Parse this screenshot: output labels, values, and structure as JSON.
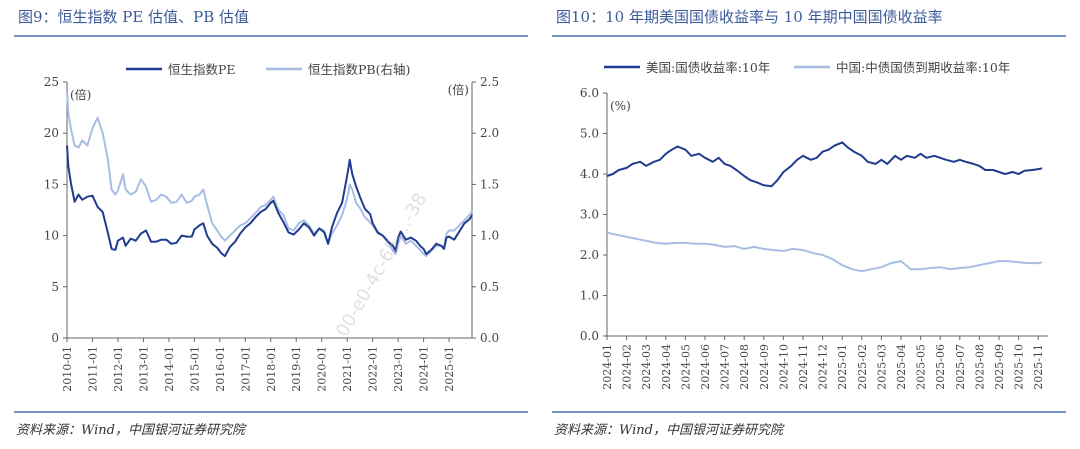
{
  "charts": [
    {
      "title": "图9：恒生指数 PE 估值、PB 估值",
      "source": "资料来源：Wind，中国银河证券研究院",
      "watermark": "00-e0-4c-65-...-38"
    },
    {
      "title": "图10：10 年期美国国债收益率与 10 年期中国国债收益率",
      "source": "资料来源：Wind，中国银河证券研究院"
    }
  ],
  "colors": {
    "dark": "#1f3c8f",
    "light": "#a9bde4",
    "accent": "#3c5a9a"
  },
  "chart_data": [
    {
      "type": "line",
      "title": "",
      "y_unit_left": "(倍)",
      "y_unit_right": "(倍)",
      "ylim": [
        0,
        25
      ],
      "yticks": [
        "0",
        "5",
        "10",
        "15",
        "20",
        "25"
      ],
      "y2lim": [
        0.0,
        2.5
      ],
      "y2ticks": [
        "0.0",
        "0.5",
        "1.0",
        "1.5",
        "2.0",
        "2.5"
      ],
      "xticks": [
        "2010-01",
        "2011-01",
        "2012-01",
        "2013-01",
        "2014-01",
        "2015-01",
        "2016-01",
        "2017-01",
        "2018-01",
        "2019-01",
        "2020-01",
        "2021-01",
        "2022-01",
        "2023-01",
        "2024-01",
        "2025-01"
      ],
      "xlim": [
        2010.0,
        2025.9
      ],
      "legend_position": "top",
      "series": [
        {
          "name": "恒生指数PE",
          "axis": "left",
          "x": [
            2010.0,
            2010.05,
            2010.15,
            2010.3,
            2010.45,
            2010.6,
            2010.8,
            2011.0,
            2011.2,
            2011.4,
            2011.6,
            2011.75,
            2011.9,
            2012.0,
            2012.2,
            2012.3,
            2012.5,
            2012.7,
            2012.9,
            2013.1,
            2013.3,
            2013.5,
            2013.7,
            2013.9,
            2014.1,
            2014.3,
            2014.5,
            2014.7,
            2014.9,
            2015.0,
            2015.2,
            2015.35,
            2015.5,
            2015.7,
            2015.9,
            2016.05,
            2016.2,
            2016.4,
            2016.6,
            2016.8,
            2017.0,
            2017.2,
            2017.4,
            2017.6,
            2017.8,
            2018.0,
            2018.1,
            2018.3,
            2018.5,
            2018.7,
            2018.9,
            2019.1,
            2019.3,
            2019.5,
            2019.7,
            2019.9,
            2020.1,
            2020.25,
            2020.4,
            2020.6,
            2020.8,
            2020.95,
            2021.05,
            2021.1,
            2021.2,
            2021.35,
            2021.5,
            2021.7,
            2021.9,
            2022.0,
            2022.2,
            2022.4,
            2022.6,
            2022.8,
            2022.9,
            2023.0,
            2023.1,
            2023.3,
            2023.5,
            2023.7,
            2023.9,
            2024.0,
            2024.1,
            2024.3,
            2024.5,
            2024.7,
            2024.8,
            2024.9,
            2025.0,
            2025.2,
            2025.4,
            2025.6,
            2025.8,
            2025.9
          ],
          "values": [
            18.8,
            16.8,
            15.2,
            13.3,
            14.0,
            13.5,
            13.8,
            13.9,
            12.8,
            12.3,
            10.3,
            8.7,
            8.6,
            9.5,
            9.8,
            9.0,
            9.7,
            9.5,
            10.2,
            10.5,
            9.4,
            9.4,
            9.6,
            9.6,
            9.2,
            9.3,
            10.0,
            9.9,
            9.9,
            10.6,
            11.0,
            11.2,
            10.0,
            9.2,
            8.8,
            8.3,
            8.0,
            8.9,
            9.4,
            10.2,
            10.8,
            11.2,
            11.8,
            12.3,
            12.6,
            13.2,
            13.4,
            12.2,
            11.3,
            10.3,
            10.1,
            10.6,
            11.2,
            10.8,
            10.0,
            10.7,
            10.3,
            9.2,
            10.8,
            12.2,
            13.2,
            15.2,
            16.6,
            17.4,
            16.0,
            14.8,
            13.8,
            12.6,
            12.1,
            11.2,
            10.3,
            10.0,
            9.4,
            9.0,
            8.5,
            9.8,
            10.4,
            9.6,
            9.8,
            9.5,
            8.9,
            8.7,
            8.2,
            8.6,
            9.2,
            9.0,
            8.7,
            9.8,
            9.9,
            9.6,
            10.4,
            11.2,
            11.6,
            12.0
          ]
        },
        {
          "name": "恒生指数PB(右轴)",
          "axis": "right",
          "x": [
            2010.0,
            2010.05,
            2010.15,
            2010.3,
            2010.45,
            2010.6,
            2010.8,
            2011.0,
            2011.2,
            2011.4,
            2011.6,
            2011.75,
            2011.9,
            2012.0,
            2012.2,
            2012.3,
            2012.5,
            2012.7,
            2012.9,
            2013.1,
            2013.3,
            2013.5,
            2013.7,
            2013.9,
            2014.1,
            2014.3,
            2014.5,
            2014.7,
            2014.9,
            2015.0,
            2015.2,
            2015.35,
            2015.5,
            2015.7,
            2015.9,
            2016.05,
            2016.2,
            2016.4,
            2016.6,
            2016.8,
            2017.0,
            2017.2,
            2017.4,
            2017.6,
            2017.8,
            2018.0,
            2018.1,
            2018.3,
            2018.5,
            2018.7,
            2018.9,
            2019.1,
            2019.3,
            2019.5,
            2019.7,
            2019.9,
            2020.1,
            2020.25,
            2020.4,
            2020.6,
            2020.8,
            2020.95,
            2021.05,
            2021.1,
            2021.2,
            2021.35,
            2021.5,
            2021.7,
            2021.9,
            2022.0,
            2022.2,
            2022.4,
            2022.6,
            2022.8,
            2022.9,
            2023.0,
            2023.1,
            2023.3,
            2023.5,
            2023.7,
            2023.9,
            2024.0,
            2024.1,
            2024.3,
            2024.5,
            2024.7,
            2024.8,
            2024.9,
            2025.0,
            2025.2,
            2025.4,
            2025.6,
            2025.8,
            2025.9
          ],
          "values": [
            2.4,
            2.2,
            2.05,
            1.88,
            1.86,
            1.93,
            1.88,
            2.05,
            2.15,
            2.0,
            1.75,
            1.45,
            1.4,
            1.44,
            1.6,
            1.45,
            1.4,
            1.43,
            1.55,
            1.48,
            1.33,
            1.35,
            1.4,
            1.38,
            1.32,
            1.33,
            1.4,
            1.32,
            1.34,
            1.38,
            1.4,
            1.45,
            1.3,
            1.12,
            1.05,
            0.99,
            0.95,
            1.0,
            1.05,
            1.1,
            1.12,
            1.17,
            1.22,
            1.28,
            1.3,
            1.35,
            1.38,
            1.25,
            1.2,
            1.07,
            1.05,
            1.12,
            1.15,
            1.1,
            1.02,
            1.07,
            1.05,
            0.92,
            1.02,
            1.1,
            1.2,
            1.32,
            1.42,
            1.5,
            1.45,
            1.32,
            1.27,
            1.18,
            1.13,
            1.1,
            1.02,
            1.0,
            0.95,
            0.85,
            0.82,
            0.92,
            1.0,
            0.92,
            0.95,
            0.9,
            0.85,
            0.82,
            0.8,
            0.85,
            0.9,
            0.9,
            0.88,
            1.02,
            1.05,
            1.05,
            1.1,
            1.15,
            1.2,
            1.24
          ]
        }
      ]
    },
    {
      "type": "line",
      "title": "",
      "y_unit_left": "(%)",
      "ylim": [
        0.0,
        6.0
      ],
      "yticks": [
        "0.0",
        "1.0",
        "2.0",
        "3.0",
        "4.0",
        "5.0",
        "6.0"
      ],
      "xticks": [
        "2024-01",
        "2024-02",
        "2024-03",
        "2024-04",
        "2024-05",
        "2024-06",
        "2024-07",
        "2024-08",
        "2024-09",
        "2024-10",
        "2024-11",
        "2024-12",
        "2025-01",
        "2025-02",
        "2025-03",
        "2025-04",
        "2025-05",
        "2025-06",
        "2025-07",
        "2025-08",
        "2025-09",
        "2025-10",
        "2025-11"
      ],
      "xlim": [
        0,
        22.5
      ],
      "legend_position": "top",
      "series": [
        {
          "name": "美国:国债收益率:10年",
          "axis": "left",
          "x": [
            0,
            0.3,
            0.6,
            1.0,
            1.3,
            1.7,
            2.0,
            2.4,
            2.7,
            3.0,
            3.3,
            3.6,
            4.0,
            4.3,
            4.7,
            5.0,
            5.4,
            5.7,
            6.0,
            6.3,
            6.6,
            7.0,
            7.3,
            7.6,
            8.0,
            8.4,
            8.7,
            9.0,
            9.4,
            9.7,
            10.0,
            10.4,
            10.7,
            11.0,
            11.3,
            11.6,
            12.0,
            12.3,
            12.6,
            13.0,
            13.3,
            13.7,
            14.0,
            14.3,
            14.7,
            15.0,
            15.3,
            15.7,
            16.0,
            16.3,
            16.7,
            17.0,
            17.3,
            17.7,
            18.0,
            18.3,
            18.7,
            19.0,
            19.3,
            19.7,
            20.0,
            20.3,
            20.7,
            21.0,
            21.3,
            21.7,
            22.0,
            22.2
          ],
          "values": [
            3.95,
            4.0,
            4.1,
            4.15,
            4.25,
            4.3,
            4.2,
            4.3,
            4.35,
            4.5,
            4.6,
            4.68,
            4.6,
            4.45,
            4.5,
            4.4,
            4.3,
            4.4,
            4.25,
            4.2,
            4.1,
            3.95,
            3.85,
            3.8,
            3.72,
            3.7,
            3.85,
            4.05,
            4.2,
            4.35,
            4.45,
            4.35,
            4.4,
            4.55,
            4.6,
            4.7,
            4.78,
            4.65,
            4.55,
            4.45,
            4.3,
            4.25,
            4.35,
            4.25,
            4.45,
            4.35,
            4.45,
            4.4,
            4.5,
            4.4,
            4.45,
            4.4,
            4.35,
            4.3,
            4.35,
            4.3,
            4.25,
            4.2,
            4.1,
            4.1,
            4.05,
            4.0,
            4.05,
            4.0,
            4.08,
            4.1,
            4.12,
            4.14
          ]
        },
        {
          "name": "中国:中债国债到期收益率:10年",
          "axis": "left",
          "x": [
            0,
            0.5,
            1.0,
            1.5,
            2.0,
            2.5,
            3.0,
            3.5,
            4.0,
            4.5,
            5.0,
            5.5,
            6.0,
            6.5,
            7.0,
            7.5,
            8.0,
            8.5,
            9.0,
            9.5,
            10.0,
            10.5,
            11.0,
            11.5,
            12.0,
            12.5,
            13.0,
            13.5,
            14.0,
            14.5,
            15.0,
            15.5,
            16.0,
            16.5,
            17.0,
            17.5,
            18.0,
            18.5,
            19.0,
            19.5,
            20.0,
            20.5,
            21.0,
            21.5,
            22.0,
            22.2
          ],
          "values": [
            2.55,
            2.5,
            2.45,
            2.4,
            2.35,
            2.3,
            2.28,
            2.3,
            2.3,
            2.28,
            2.28,
            2.25,
            2.2,
            2.22,
            2.15,
            2.2,
            2.15,
            2.12,
            2.1,
            2.15,
            2.12,
            2.05,
            2.0,
            1.9,
            1.75,
            1.65,
            1.6,
            1.65,
            1.7,
            1.8,
            1.85,
            1.65,
            1.65,
            1.68,
            1.7,
            1.65,
            1.68,
            1.7,
            1.75,
            1.8,
            1.85,
            1.85,
            1.82,
            1.8,
            1.8,
            1.82
          ]
        }
      ]
    }
  ]
}
